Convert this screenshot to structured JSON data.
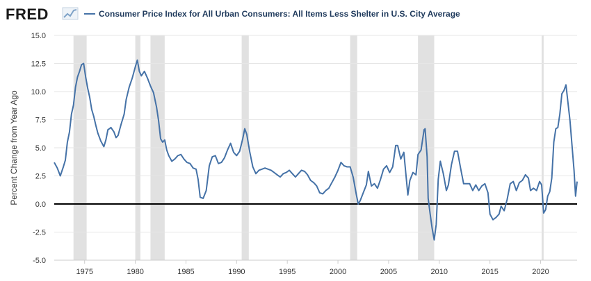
{
  "header": {
    "logo_text": "FRED",
    "logo_icon": "trend-chart-icon"
  },
  "colors": {
    "series": "#4572a7",
    "recession": "#e1e1e1",
    "grid": "#e6e6e6",
    "zero_line": "#000000",
    "logo_accent": "#7fa3c8"
  },
  "chart_data": {
    "type": "line",
    "title": "",
    "xlabel": "",
    "ylabel": "Percent Change from Year Ago",
    "ylim": [
      -5.0,
      15.0
    ],
    "xlim": [
      1972.0,
      2023.6
    ],
    "yticks": [
      {
        "value": 15.0,
        "label": "15.0"
      },
      {
        "value": 12.5,
        "label": "12.5"
      },
      {
        "value": 10.0,
        "label": "10.0"
      },
      {
        "value": 7.5,
        "label": "7.5"
      },
      {
        "value": 5.0,
        "label": "5.0"
      },
      {
        "value": 2.5,
        "label": "2.5"
      },
      {
        "value": 0.0,
        "label": "0.0"
      },
      {
        "value": -2.5,
        "label": "-2.5"
      },
      {
        "value": -5.0,
        "label": "-5.0"
      }
    ],
    "xticks": [
      {
        "value": 1975,
        "label": "1975"
      },
      {
        "value": 1980,
        "label": "1980"
      },
      {
        "value": 1985,
        "label": "1985"
      },
      {
        "value": 1990,
        "label": "1990"
      },
      {
        "value": 1995,
        "label": "1995"
      },
      {
        "value": 2000,
        "label": "2000"
      },
      {
        "value": 2005,
        "label": "2005"
      },
      {
        "value": 2010,
        "label": "2010"
      },
      {
        "value": 2015,
        "label": "2015"
      },
      {
        "value": 2020,
        "label": "2020"
      }
    ],
    "grid": true,
    "legend_position": "top-left",
    "recessions": [
      [
        1973.9,
        1975.2
      ],
      [
        1980.0,
        1980.5
      ],
      [
        1981.5,
        1982.9
      ],
      [
        1990.5,
        1991.2
      ],
      [
        2001.2,
        2001.9
      ],
      [
        2007.9,
        2009.5
      ],
      [
        2020.1,
        2020.3
      ]
    ],
    "series": [
      {
        "name": "Consumer Price Index for All Urban Consumers: All Items Less Shelter in U.S. City Average",
        "points": [
          [
            1972.0,
            3.7
          ],
          [
            1972.3,
            3.2
          ],
          [
            1972.6,
            2.5
          ],
          [
            1972.9,
            3.3
          ],
          [
            1973.1,
            3.9
          ],
          [
            1973.3,
            5.5
          ],
          [
            1973.5,
            6.4
          ],
          [
            1973.7,
            8.0
          ],
          [
            1973.9,
            8.8
          ],
          [
            1974.1,
            10.4
          ],
          [
            1974.3,
            11.3
          ],
          [
            1974.5,
            11.8
          ],
          [
            1974.7,
            12.4
          ],
          [
            1974.9,
            12.5
          ],
          [
            1975.1,
            11.3
          ],
          [
            1975.3,
            10.3
          ],
          [
            1975.5,
            9.5
          ],
          [
            1975.7,
            8.4
          ],
          [
            1975.9,
            7.8
          ],
          [
            1976.1,
            7.0
          ],
          [
            1976.3,
            6.3
          ],
          [
            1976.6,
            5.6
          ],
          [
            1976.9,
            5.1
          ],
          [
            1977.1,
            5.7
          ],
          [
            1977.3,
            6.6
          ],
          [
            1977.6,
            6.8
          ],
          [
            1977.9,
            6.4
          ],
          [
            1978.1,
            5.9
          ],
          [
            1978.3,
            6.1
          ],
          [
            1978.6,
            7.1
          ],
          [
            1978.9,
            8.0
          ],
          [
            1979.1,
            9.3
          ],
          [
            1979.4,
            10.4
          ],
          [
            1979.7,
            11.2
          ],
          [
            1980.0,
            12.2
          ],
          [
            1980.2,
            12.8
          ],
          [
            1980.4,
            11.8
          ],
          [
            1980.6,
            11.4
          ],
          [
            1980.9,
            11.8
          ],
          [
            1981.2,
            11.2
          ],
          [
            1981.5,
            10.5
          ],
          [
            1981.8,
            9.9
          ],
          [
            1982.1,
            8.6
          ],
          [
            1982.3,
            7.4
          ],
          [
            1982.5,
            5.8
          ],
          [
            1982.7,
            5.5
          ],
          [
            1982.9,
            5.7
          ],
          [
            1983.1,
            4.8
          ],
          [
            1983.3,
            4.3
          ],
          [
            1983.6,
            3.8
          ],
          [
            1983.9,
            4.0
          ],
          [
            1984.2,
            4.3
          ],
          [
            1984.5,
            4.4
          ],
          [
            1984.8,
            4.0
          ],
          [
            1985.1,
            3.7
          ],
          [
            1985.4,
            3.6
          ],
          [
            1985.7,
            3.2
          ],
          [
            1986.0,
            3.1
          ],
          [
            1986.2,
            2.2
          ],
          [
            1986.4,
            0.6
          ],
          [
            1986.7,
            0.5
          ],
          [
            1987.0,
            1.2
          ],
          [
            1987.3,
            3.4
          ],
          [
            1987.6,
            4.2
          ],
          [
            1987.9,
            4.3
          ],
          [
            1988.2,
            3.6
          ],
          [
            1988.5,
            3.7
          ],
          [
            1988.8,
            4.1
          ],
          [
            1989.1,
            4.8
          ],
          [
            1989.4,
            5.4
          ],
          [
            1989.7,
            4.6
          ],
          [
            1990.0,
            4.3
          ],
          [
            1990.3,
            4.7
          ],
          [
            1990.6,
            5.8
          ],
          [
            1990.8,
            6.7
          ],
          [
            1991.0,
            6.2
          ],
          [
            1991.3,
            4.6
          ],
          [
            1991.6,
            3.3
          ],
          [
            1991.9,
            2.7
          ],
          [
            1992.2,
            3.0
          ],
          [
            1992.5,
            3.1
          ],
          [
            1992.8,
            3.2
          ],
          [
            1993.1,
            3.1
          ],
          [
            1993.4,
            3.0
          ],
          [
            1993.7,
            2.8
          ],
          [
            1994.0,
            2.6
          ],
          [
            1994.3,
            2.4
          ],
          [
            1994.6,
            2.7
          ],
          [
            1994.9,
            2.8
          ],
          [
            1995.2,
            3.0
          ],
          [
            1995.5,
            2.7
          ],
          [
            1995.8,
            2.4
          ],
          [
            1996.1,
            2.7
          ],
          [
            1996.4,
            3.0
          ],
          [
            1996.7,
            2.9
          ],
          [
            1997.0,
            2.6
          ],
          [
            1997.3,
            2.1
          ],
          [
            1997.6,
            1.9
          ],
          [
            1997.9,
            1.6
          ],
          [
            1998.2,
            1.0
          ],
          [
            1998.5,
            0.9
          ],
          [
            1998.8,
            1.2
          ],
          [
            1999.1,
            1.4
          ],
          [
            1999.4,
            1.9
          ],
          [
            1999.7,
            2.4
          ],
          [
            2000.0,
            3.0
          ],
          [
            2000.3,
            3.7
          ],
          [
            2000.6,
            3.4
          ],
          [
            2000.9,
            3.3
          ],
          [
            2001.2,
            3.3
          ],
          [
            2001.5,
            2.4
          ],
          [
            2001.8,
            0.9
          ],
          [
            2002.0,
            0.0
          ],
          [
            2002.2,
            0.3
          ],
          [
            2002.5,
            1.0
          ],
          [
            2002.8,
            1.7
          ],
          [
            2003.0,
            2.9
          ],
          [
            2003.3,
            1.6
          ],
          [
            2003.6,
            1.8
          ],
          [
            2003.9,
            1.4
          ],
          [
            2004.2,
            2.2
          ],
          [
            2004.5,
            3.1
          ],
          [
            2004.8,
            3.4
          ],
          [
            2005.1,
            2.8
          ],
          [
            2005.4,
            3.3
          ],
          [
            2005.7,
            5.2
          ],
          [
            2005.9,
            5.2
          ],
          [
            2006.2,
            4.0
          ],
          [
            2006.5,
            4.6
          ],
          [
            2006.7,
            2.7
          ],
          [
            2006.9,
            0.8
          ],
          [
            2007.1,
            2.1
          ],
          [
            2007.4,
            2.8
          ],
          [
            2007.7,
            2.6
          ],
          [
            2007.9,
            4.4
          ],
          [
            2008.2,
            4.8
          ],
          [
            2008.5,
            6.6
          ],
          [
            2008.6,
            6.7
          ],
          [
            2008.8,
            4.2
          ],
          [
            2008.9,
            0.5
          ],
          [
            2009.1,
            -0.9
          ],
          [
            2009.3,
            -2.2
          ],
          [
            2009.5,
            -3.2
          ],
          [
            2009.7,
            -1.8
          ],
          [
            2009.9,
            2.2
          ],
          [
            2010.1,
            3.8
          ],
          [
            2010.4,
            2.7
          ],
          [
            2010.7,
            1.2
          ],
          [
            2010.9,
            1.7
          ],
          [
            2011.2,
            3.5
          ],
          [
            2011.5,
            4.7
          ],
          [
            2011.8,
            4.7
          ],
          [
            2012.1,
            3.2
          ],
          [
            2012.4,
            1.8
          ],
          [
            2012.7,
            1.8
          ],
          [
            2013.0,
            1.8
          ],
          [
            2013.3,
            1.2
          ],
          [
            2013.6,
            1.7
          ],
          [
            2013.9,
            1.2
          ],
          [
            2014.2,
            1.6
          ],
          [
            2014.5,
            1.8
          ],
          [
            2014.8,
            1.0
          ],
          [
            2015.0,
            -0.9
          ],
          [
            2015.3,
            -1.4
          ],
          [
            2015.6,
            -1.2
          ],
          [
            2015.9,
            -0.9
          ],
          [
            2016.1,
            -0.2
          ],
          [
            2016.4,
            -0.6
          ],
          [
            2016.7,
            0.4
          ],
          [
            2017.0,
            1.8
          ],
          [
            2017.3,
            2.0
          ],
          [
            2017.6,
            1.2
          ],
          [
            2017.9,
            1.9
          ],
          [
            2018.2,
            2.1
          ],
          [
            2018.5,
            2.6
          ],
          [
            2018.8,
            2.3
          ],
          [
            2019.0,
            1.2
          ],
          [
            2019.3,
            1.4
          ],
          [
            2019.6,
            1.2
          ],
          [
            2019.9,
            2.0
          ],
          [
            2020.1,
            1.7
          ],
          [
            2020.3,
            -0.8
          ],
          [
            2020.5,
            -0.5
          ],
          [
            2020.7,
            0.7
          ],
          [
            2020.9,
            1.1
          ],
          [
            2021.1,
            2.3
          ],
          [
            2021.3,
            5.5
          ],
          [
            2021.5,
            6.7
          ],
          [
            2021.7,
            6.8
          ],
          [
            2021.9,
            8.0
          ],
          [
            2022.1,
            9.8
          ],
          [
            2022.3,
            10.1
          ],
          [
            2022.5,
            10.6
          ],
          [
            2022.7,
            9.0
          ],
          [
            2022.9,
            7.4
          ],
          [
            2023.1,
            5.2
          ],
          [
            2023.3,
            3.0
          ],
          [
            2023.45,
            0.7
          ],
          [
            2023.6,
            2.0
          ]
        ]
      }
    ]
  }
}
